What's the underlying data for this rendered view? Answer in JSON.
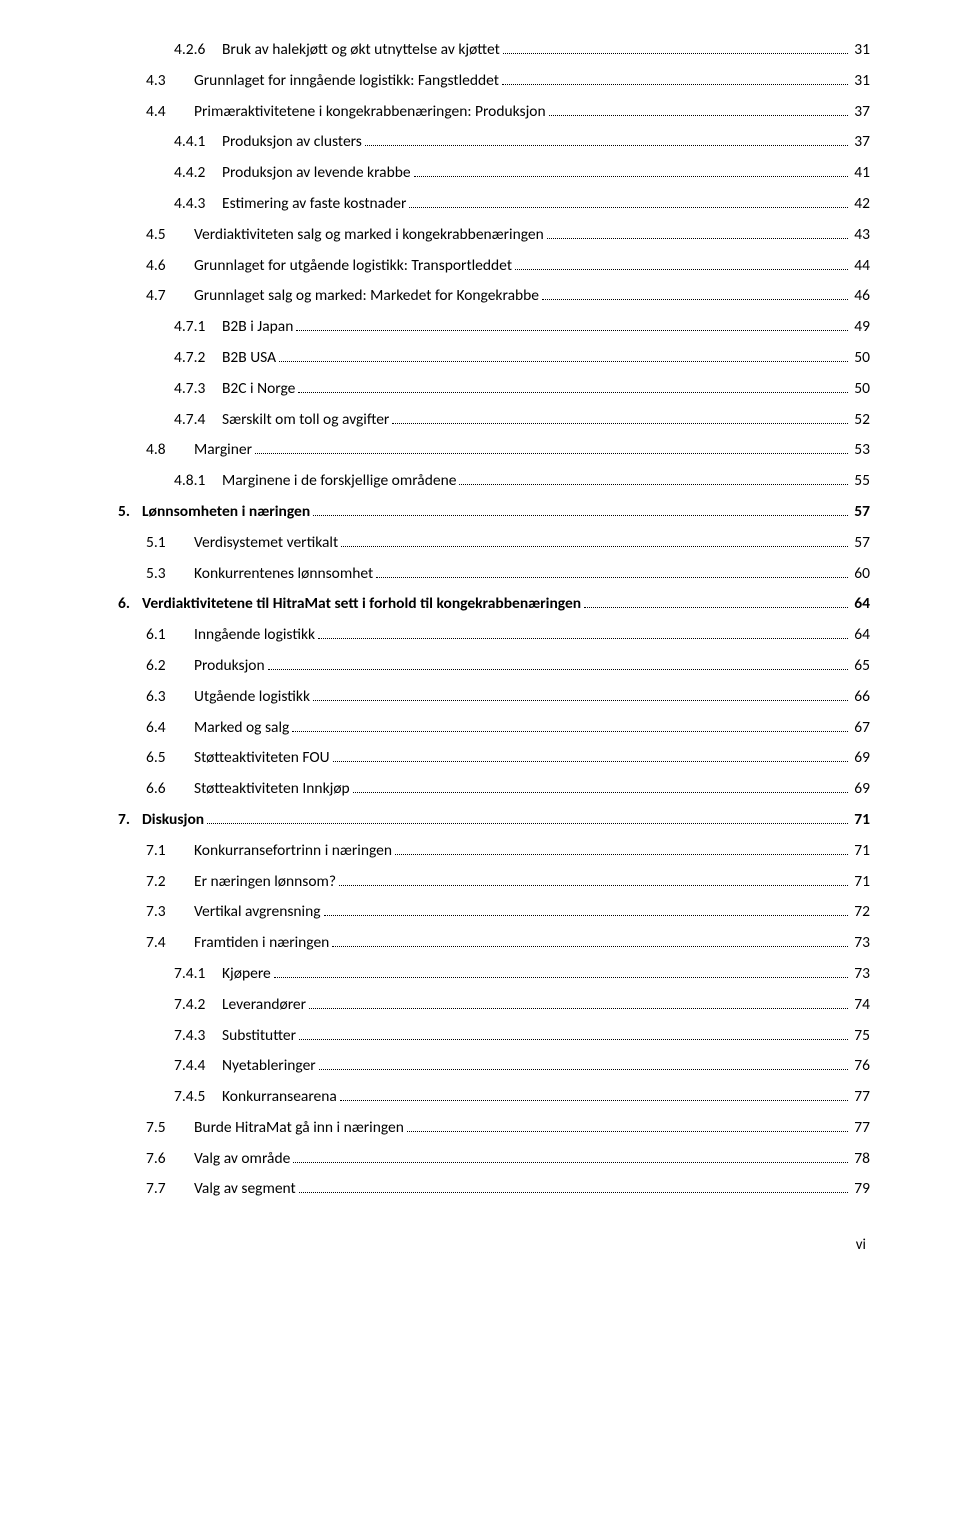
{
  "entries": [
    {
      "level": 2,
      "num": "4.2.6",
      "title": "Bruk av halekjøtt og økt utnyttelse av kjøttet",
      "page": "31"
    },
    {
      "level": 1,
      "num": "4.3",
      "title": "Grunnlaget for inngående logistikk: Fangstleddet",
      "page": "31"
    },
    {
      "level": 1,
      "num": "4.4",
      "title": "Primæraktivitetene i kongekrabbenæringen: Produksjon",
      "page": "37"
    },
    {
      "level": 2,
      "num": "4.4.1",
      "title": "Produksjon av clusters",
      "page": "37"
    },
    {
      "level": 2,
      "num": "4.4.2",
      "title": "Produksjon av levende krabbe",
      "page": "41"
    },
    {
      "level": 2,
      "num": "4.4.3",
      "title": "Estimering av faste kostnader",
      "page": "42"
    },
    {
      "level": 1,
      "num": "4.5",
      "title": "Verdiaktiviteten salg og marked i kongekrabbenæringen",
      "page": "43"
    },
    {
      "level": 1,
      "num": "4.6",
      "title": "Grunnlaget for utgående logistikk: Transportleddet",
      "page": "44"
    },
    {
      "level": 1,
      "num": "4.7",
      "title": "Grunnlaget salg og marked: Markedet for Kongekrabbe",
      "page": "46"
    },
    {
      "level": 2,
      "num": "4.7.1",
      "title": "B2B i Japan",
      "page": "49"
    },
    {
      "level": 2,
      "num": "4.7.2",
      "title": "B2B USA",
      "page": "50"
    },
    {
      "level": 2,
      "num": "4.7.3",
      "title": "B2C i Norge",
      "page": "50"
    },
    {
      "level": 2,
      "num": "4.7.4",
      "title": "Særskilt om toll og avgifter",
      "page": "52"
    },
    {
      "level": 1,
      "num": "4.8",
      "title": "Marginer",
      "page": "53"
    },
    {
      "level": 2,
      "num": "4.8.1",
      "title": "Marginene i de forskjellige områdene",
      "page": "55"
    },
    {
      "level": 0,
      "num": "5.",
      "title": "Lønnsomheten i næringen",
      "page": "57"
    },
    {
      "level": 1,
      "num": "5.1",
      "title": "Verdisystemet vertikalt",
      "page": "57"
    },
    {
      "level": 1,
      "num": "5.3",
      "title": "Konkurrentenes lønnsomhet",
      "page": "60"
    },
    {
      "level": 0,
      "num": "6.",
      "title": "Verdiaktivitetene til HitraMat sett i forhold til kongekrabbenæringen",
      "page": "64"
    },
    {
      "level": 1,
      "num": "6.1",
      "title": "Inngående logistikk",
      "page": "64"
    },
    {
      "level": 1,
      "num": "6.2",
      "title": "Produksjon",
      "page": "65"
    },
    {
      "level": 1,
      "num": "6.3",
      "title": "Utgående logistikk",
      "page": "66"
    },
    {
      "level": 1,
      "num": "6.4",
      "title": "Marked og salg",
      "page": "67"
    },
    {
      "level": 1,
      "num": "6.5",
      "title": "Støtteaktiviteten FOU",
      "page": "69"
    },
    {
      "level": 1,
      "num": "6.6",
      "title": "Støtteaktiviteten Innkjøp",
      "page": "69"
    },
    {
      "level": 0,
      "num": "7.",
      "title": "Diskusjon",
      "page": "71"
    },
    {
      "level": 1,
      "num": "7.1",
      "title": "Konkurransefortrinn i næringen",
      "page": "71"
    },
    {
      "level": 1,
      "num": "7.2",
      "title": "Er næringen lønnsom?",
      "page": "71"
    },
    {
      "level": 1,
      "num": "7.3",
      "title": "Vertikal avgrensning",
      "page": "72"
    },
    {
      "level": 1,
      "num": "7.4",
      "title": "Framtiden i næringen",
      "page": "73"
    },
    {
      "level": 2,
      "num": "7.4.1",
      "title": "Kjøpere",
      "page": "73"
    },
    {
      "level": 2,
      "num": "7.4.2",
      "title": "Leverandører",
      "page": "74"
    },
    {
      "level": 2,
      "num": "7.4.3",
      "title": "Substitutter",
      "page": "75"
    },
    {
      "level": 2,
      "num": "7.4.4",
      "title": "Nyetableringer",
      "page": "76"
    },
    {
      "level": 2,
      "num": "7.4.5",
      "title": "Konkurransearena",
      "page": "77"
    },
    {
      "level": 1,
      "num": "7.5",
      "title": "Burde HitraMat gå inn i næringen",
      "page": "77"
    },
    {
      "level": 1,
      "num": "7.6",
      "title": "Valg av område",
      "page": "78"
    },
    {
      "level": 1,
      "num": "7.7",
      "title": "Valg av segment",
      "page": "79"
    }
  ],
  "footer": "vi"
}
